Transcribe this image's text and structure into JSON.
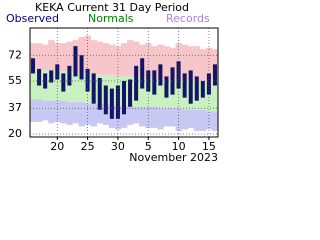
{
  "chart_data": {
    "type": "range-bar",
    "title": "KEKA Current 31 Day Period",
    "x_label": "November 2023",
    "categories": [
      null,
      null,
      null,
      null,
      "20",
      null,
      null,
      null,
      null,
      "25",
      null,
      null,
      null,
      null,
      "30",
      null,
      null,
      null,
      null,
      "5",
      null,
      null,
      null,
      null,
      "10",
      null,
      null,
      null,
      null,
      "15",
      null
    ],
    "series": [
      {
        "name": "Observed",
        "color": "#000080",
        "fill": "#141464",
        "high": [
          70,
          63,
          60,
          62,
          66,
          60,
          65,
          78,
          72,
          63,
          60,
          57,
          52,
          50,
          52,
          55,
          56,
          65,
          70,
          62,
          62,
          66,
          58,
          64,
          68,
          60,
          62,
          58,
          55,
          60,
          66
        ],
        "low": [
          60,
          52,
          50,
          54,
          56,
          48,
          52,
          58,
          56,
          48,
          40,
          36,
          33,
          30,
          30,
          33,
          38,
          42,
          50,
          48,
          46,
          52,
          44,
          46,
          50,
          44,
          40,
          42,
          44,
          46,
          52
        ]
      },
      {
        "name": "Normals",
        "color": "#008000",
        "fill": "#c8f0c0",
        "high": [
          63,
          63,
          62,
          62,
          62,
          61,
          61,
          61,
          60,
          60,
          60,
          59,
          59,
          59,
          58,
          58,
          58,
          58,
          57,
          57,
          57,
          56,
          56,
          56,
          56,
          55,
          55,
          55,
          55,
          54,
          54
        ],
        "low": [
          43,
          43,
          42,
          42,
          42,
          42,
          41,
          41,
          41,
          40,
          40,
          40,
          40,
          39,
          39,
          39,
          39,
          38,
          38,
          38,
          38,
          37,
          37,
          37,
          37,
          36,
          36,
          36,
          36,
          35,
          35
        ]
      },
      {
        "name": "Records",
        "color": "#b080d8",
        "fill": "#f7c6cb",
        "fill_low": "#c8c8f5",
        "high": [
          80,
          80,
          79,
          82,
          80,
          80,
          81,
          82,
          84,
          85,
          82,
          81,
          80,
          79,
          78,
          80,
          82,
          81,
          79,
          80,
          78,
          79,
          78,
          77,
          80,
          79,
          78,
          78,
          76,
          77,
          76
        ],
        "low": [
          28,
          28,
          29,
          27,
          28,
          27,
          26,
          27,
          25,
          26,
          25,
          27,
          26,
          24,
          23,
          24,
          26,
          27,
          25,
          24,
          24,
          23,
          25,
          25,
          22,
          23,
          24,
          22,
          22,
          23,
          22
        ]
      }
    ],
    "ylim": [
      18,
      90
    ],
    "yticks": [
      20,
      37,
      55,
      72
    ],
    "grid": true
  }
}
